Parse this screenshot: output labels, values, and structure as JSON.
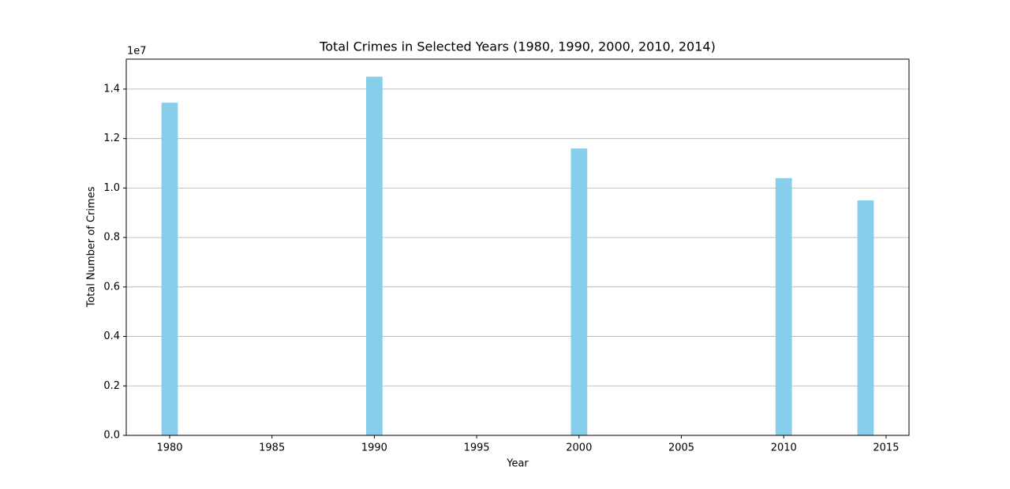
{
  "chart_data": {
    "type": "bar",
    "title": "Total Crimes in Selected Years (1980, 1990, 2000, 2010, 2014)",
    "x_label": "Year",
    "y_label": "Total Number of Crimes",
    "y_offset_label": "1e7",
    "x": [
      1980,
      1990,
      2000,
      2010,
      2014
    ],
    "values": [
      13450000,
      14500000,
      11600000,
      10400000,
      9500000
    ],
    "color": "#87ceeb",
    "xlim": [
      1977.88,
      2016.12
    ],
    "xticks": [
      1980,
      1985,
      1990,
      1995,
      2000,
      2005,
      2010,
      2015
    ],
    "ylim": [
      0,
      15210000
    ],
    "yticks": [
      {
        "value": 0,
        "label": "0.0"
      },
      {
        "value": 2000000,
        "label": "0.2"
      },
      {
        "value": 4000000,
        "label": "0.4"
      },
      {
        "value": 6000000,
        "label": "0.6"
      },
      {
        "value": 8000000,
        "label": "0.8"
      },
      {
        "value": 10000000,
        "label": "1.0"
      },
      {
        "value": 12000000,
        "label": "1.2"
      },
      {
        "value": 14000000,
        "label": "1.4"
      }
    ],
    "grid": "y"
  }
}
